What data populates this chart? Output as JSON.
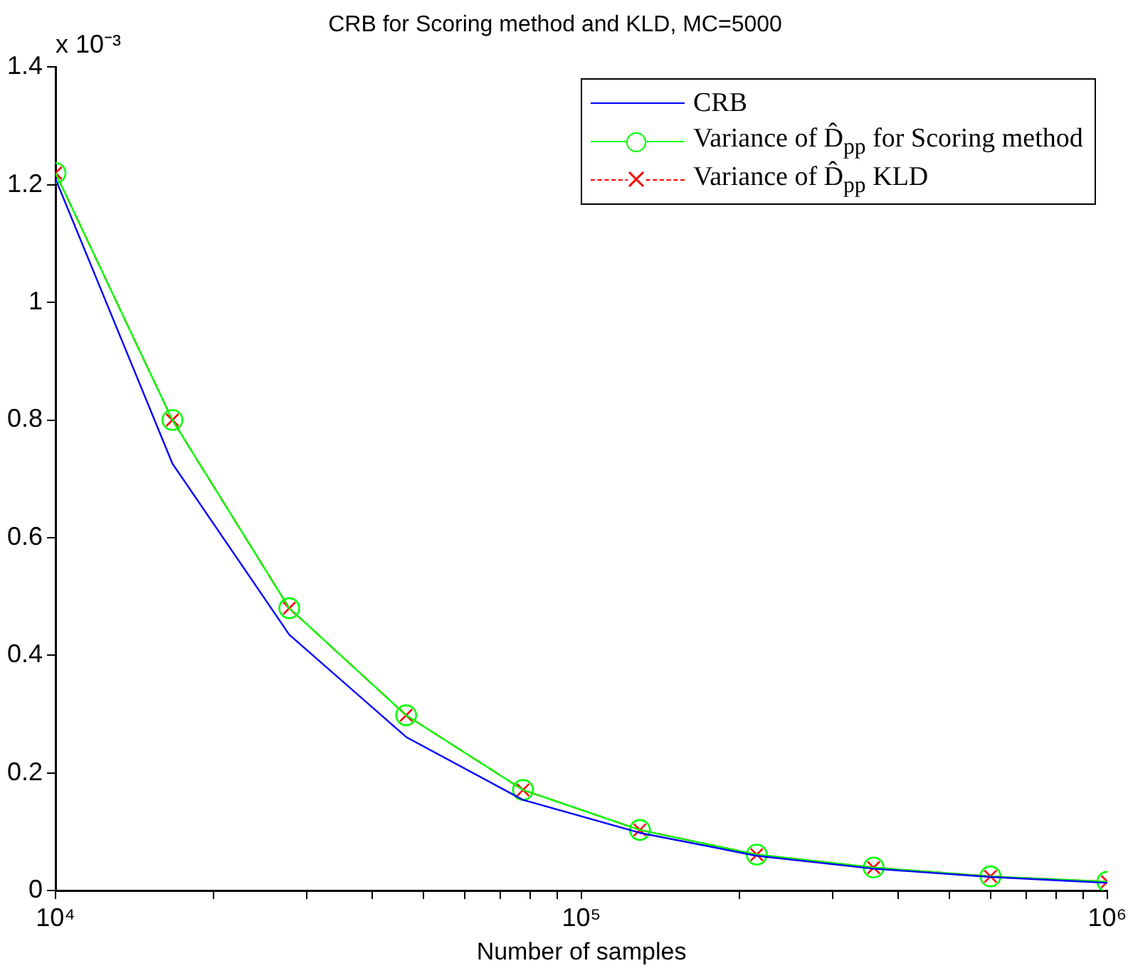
{
  "chart_data": {
    "type": "line",
    "title": "CRB for Scoring method and KLD, MC=5000",
    "xlabel": "Number of samples",
    "annotations": [
      "x 10⁻³"
    ],
    "log": "x",
    "x": [
      10000,
      16681,
      27826,
      46416,
      77426,
      129155,
      215443,
      359381,
      599484,
      1000000
    ],
    "series": [
      {
        "name": "CRB",
        "color": "#0000ff",
        "marker": "none",
        "line_style": "solid",
        "values": [
          1.21,
          0.726,
          0.435,
          0.261,
          0.154,
          0.098,
          0.059,
          0.037,
          0.023,
          0.013
        ]
      },
      {
        "name": "Variance of D̂$_{pp}$ for Scoring method",
        "color": "#00ff00",
        "marker": "circle",
        "line_style": "solid",
        "values": [
          1.22,
          0.8,
          0.48,
          0.298,
          0.171,
          0.103,
          0.061,
          0.039,
          0.024,
          0.015
        ]
      },
      {
        "name": "Variance of D̂$_{pp}$ KLD",
        "color": "#ff0000",
        "marker": "cross",
        "line_style": "dashed",
        "values": [
          1.22,
          0.8,
          0.48,
          0.298,
          0.171,
          0.103,
          0.061,
          0.039,
          0.024,
          0.015
        ]
      }
    ],
    "xlim": [
      10000,
      1000000
    ],
    "xticks": [
      {
        "value": 10000,
        "label": "10⁴"
      },
      {
        "value": 20000,
        "label": null
      },
      {
        "value": 30000,
        "label": null
      },
      {
        "value": 40000,
        "label": null
      },
      {
        "value": 50000,
        "label": null
      },
      {
        "value": 60000,
        "label": null
      },
      {
        "value": 70000,
        "label": null
      },
      {
        "value": 80000,
        "label": null
      },
      {
        "value": 90000,
        "label": null
      },
      {
        "value": 100000,
        "label": "10⁵"
      },
      {
        "value": 200000,
        "label": null
      },
      {
        "value": 300000,
        "label": null
      },
      {
        "value": 400000,
        "label": null
      },
      {
        "value": 500000,
        "label": null
      },
      {
        "value": 600000,
        "label": null
      },
      {
        "value": 700000,
        "label": null
      },
      {
        "value": 800000,
        "label": null
      },
      {
        "value": 900000,
        "label": null
      },
      {
        "value": 1000000,
        "label": "10⁶"
      }
    ],
    "ylim": [
      0,
      1.4
    ],
    "yticks": [
      0,
      0.2,
      0.4,
      0.6,
      0.8,
      1,
      1.2,
      1.4
    ],
    "grid": false,
    "legend": "top right"
  }
}
